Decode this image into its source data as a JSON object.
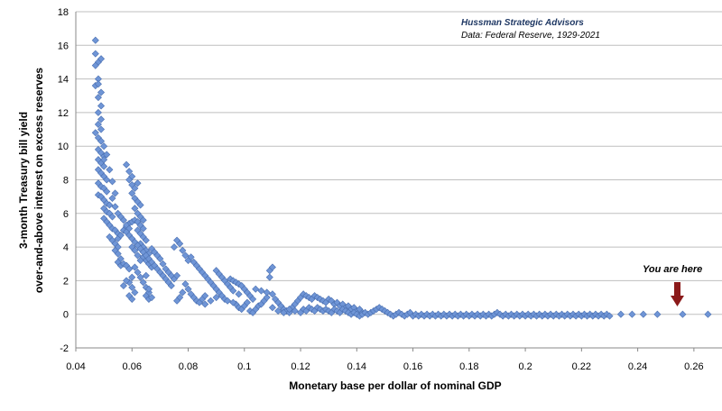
{
  "chart_data": {
    "type": "scatter",
    "source_title": "Hussman Strategic Advisors",
    "source_data": "Data: Federal Reserve, 1929-2021",
    "xlabel": "Monetary base per dollar of nominal GDP",
    "ylabel_line1": "3-month Treasury bill yield",
    "ylabel_line2": "over-and-above  interest on excess reserves",
    "xlim": [
      0.04,
      0.27
    ],
    "ylim": [
      -2,
      18
    ],
    "x_ticks": [
      "0.04",
      "0.06",
      "0.08",
      "0.1",
      "0.12",
      "0.14",
      "0.16",
      "0.18",
      "0.2",
      "0.22",
      "0.24",
      "0.26"
    ],
    "x_tick_values": [
      0.04,
      0.06,
      0.08,
      0.1,
      0.12,
      0.14,
      0.16,
      0.18,
      0.2,
      0.22,
      0.24,
      0.26
    ],
    "y_ticks": [
      "-2",
      "0",
      "2",
      "4",
      "6",
      "8",
      "10",
      "12",
      "14",
      "16",
      "18"
    ],
    "y_tick_values": [
      -2,
      0,
      2,
      4,
      6,
      8,
      10,
      12,
      14,
      16,
      18
    ],
    "grid": "horizontal",
    "marker": "diamond",
    "marker_color": "#6f95d6",
    "marker_edge": "#4a6fb0",
    "annotation": {
      "text": "You are here",
      "x": 0.265,
      "y": 0.0,
      "arrow_color": "#8b1a1a"
    },
    "points": [
      [
        0.047,
        16.3
      ],
      [
        0.047,
        15.5
      ],
      [
        0.048,
        15.0
      ],
      [
        0.047,
        14.8
      ],
      [
        0.049,
        15.2
      ],
      [
        0.048,
        14.0
      ],
      [
        0.047,
        13.6
      ],
      [
        0.048,
        13.7
      ],
      [
        0.049,
        13.2
      ],
      [
        0.048,
        12.9
      ],
      [
        0.049,
        12.4
      ],
      [
        0.048,
        12.0
      ],
      [
        0.049,
        11.6
      ],
      [
        0.048,
        11.3
      ],
      [
        0.049,
        11.0
      ],
      [
        0.047,
        10.8
      ],
      [
        0.048,
        10.5
      ],
      [
        0.049,
        10.3
      ],
      [
        0.05,
        10.0
      ],
      [
        0.048,
        9.8
      ],
      [
        0.049,
        9.6
      ],
      [
        0.05,
        9.4
      ],
      [
        0.048,
        9.2
      ],
      [
        0.049,
        9.0
      ],
      [
        0.05,
        8.8
      ],
      [
        0.048,
        8.6
      ],
      [
        0.049,
        8.4
      ],
      [
        0.05,
        8.2
      ],
      [
        0.051,
        8.0
      ],
      [
        0.048,
        7.8
      ],
      [
        0.049,
        7.6
      ],
      [
        0.05,
        7.5
      ],
      [
        0.051,
        7.3
      ],
      [
        0.048,
        7.1
      ],
      [
        0.049,
        7.0
      ],
      [
        0.05,
        6.8
      ],
      [
        0.051,
        6.6
      ],
      [
        0.052,
        6.5
      ],
      [
        0.05,
        6.3
      ],
      [
        0.051,
        6.1
      ],
      [
        0.052,
        6.0
      ],
      [
        0.053,
        5.8
      ],
      [
        0.05,
        5.7
      ],
      [
        0.051,
        5.5
      ],
      [
        0.052,
        5.3
      ],
      [
        0.053,
        5.1
      ],
      [
        0.054,
        5.0
      ],
      [
        0.055,
        4.8
      ],
      [
        0.052,
        4.6
      ],
      [
        0.053,
        4.4
      ],
      [
        0.054,
        4.2
      ],
      [
        0.055,
        4.0
      ],
      [
        0.054,
        3.8
      ],
      [
        0.055,
        3.6
      ],
      [
        0.056,
        3.3
      ],
      [
        0.055,
        3.1
      ],
      [
        0.056,
        2.9
      ],
      [
        0.057,
        3.0
      ],
      [
        0.058,
        2.9
      ],
      [
        0.055,
        4.5
      ],
      [
        0.056,
        4.7
      ],
      [
        0.057,
        5.0
      ],
      [
        0.058,
        5.2
      ],
      [
        0.059,
        5.4
      ],
      [
        0.06,
        5.5
      ],
      [
        0.061,
        5.6
      ],
      [
        0.062,
        5.5
      ],
      [
        0.063,
        5.3
      ],
      [
        0.064,
        5.1
      ],
      [
        0.058,
        8.9
      ],
      [
        0.059,
        8.5
      ],
      [
        0.06,
        8.2
      ],
      [
        0.059,
        8.0
      ],
      [
        0.06,
        7.7
      ],
      [
        0.061,
        7.5
      ],
      [
        0.062,
        7.8
      ],
      [
        0.06,
        7.2
      ],
      [
        0.061,
        6.9
      ],
      [
        0.062,
        6.7
      ],
      [
        0.063,
        6.5
      ],
      [
        0.061,
        6.3
      ],
      [
        0.062,
        6.0
      ],
      [
        0.063,
        5.8
      ],
      [
        0.064,
        5.6
      ],
      [
        0.062,
        5.0
      ],
      [
        0.063,
        4.8
      ],
      [
        0.064,
        4.6
      ],
      [
        0.065,
        4.4
      ],
      [
        0.063,
        4.2
      ],
      [
        0.064,
        4.0
      ],
      [
        0.065,
        3.8
      ],
      [
        0.066,
        3.6
      ],
      [
        0.064,
        3.4
      ],
      [
        0.065,
        3.2
      ],
      [
        0.066,
        3.0
      ],
      [
        0.067,
        2.8
      ],
      [
        0.06,
        4.0
      ],
      [
        0.061,
        3.8
      ],
      [
        0.062,
        3.5
      ],
      [
        0.063,
        3.2
      ],
      [
        0.061,
        2.8
      ],
      [
        0.062,
        2.5
      ],
      [
        0.063,
        2.2
      ],
      [
        0.064,
        1.9
      ],
      [
        0.065,
        1.6
      ],
      [
        0.066,
        1.3
      ],
      [
        0.065,
        1.1
      ],
      [
        0.066,
        0.9
      ],
      [
        0.067,
        1.0
      ],
      [
        0.066,
        1.5
      ],
      [
        0.065,
        2.3
      ],
      [
        0.06,
        2.2
      ],
      [
        0.059,
        1.9
      ],
      [
        0.06,
        1.6
      ],
      [
        0.061,
        1.3
      ],
      [
        0.059,
        1.1
      ],
      [
        0.06,
        0.9
      ],
      [
        0.058,
        2.0
      ],
      [
        0.057,
        1.7
      ],
      [
        0.059,
        2.7
      ],
      [
        0.067,
        3.9
      ],
      [
        0.068,
        3.7
      ],
      [
        0.069,
        3.5
      ],
      [
        0.07,
        3.3
      ],
      [
        0.071,
        3.0
      ],
      [
        0.072,
        2.7
      ],
      [
        0.073,
        2.5
      ],
      [
        0.074,
        2.3
      ],
      [
        0.075,
        2.1
      ],
      [
        0.076,
        2.3
      ],
      [
        0.077,
        4.2
      ],
      [
        0.076,
        4.4
      ],
      [
        0.075,
        4.0
      ],
      [
        0.078,
        3.8
      ],
      [
        0.079,
        3.5
      ],
      [
        0.08,
        3.2
      ],
      [
        0.081,
        3.4
      ],
      [
        0.082,
        3.1
      ],
      [
        0.083,
        2.9
      ],
      [
        0.084,
        2.7
      ],
      [
        0.085,
        2.5
      ],
      [
        0.086,
        2.3
      ],
      [
        0.087,
        2.1
      ],
      [
        0.088,
        1.9
      ],
      [
        0.089,
        1.7
      ],
      [
        0.09,
        1.5
      ],
      [
        0.091,
        1.3
      ],
      [
        0.092,
        1.1
      ],
      [
        0.093,
        0.9
      ],
      [
        0.079,
        1.8
      ],
      [
        0.08,
        1.5
      ],
      [
        0.081,
        1.2
      ],
      [
        0.082,
        1.0
      ],
      [
        0.083,
        0.8
      ],
      [
        0.084,
        0.7
      ],
      [
        0.085,
        0.9
      ],
      [
        0.086,
        1.1
      ],
      [
        0.078,
        1.3
      ],
      [
        0.077,
        1.0
      ],
      [
        0.076,
        0.8
      ],
      [
        0.09,
        2.6
      ],
      [
        0.091,
        2.4
      ],
      [
        0.092,
        2.2
      ],
      [
        0.093,
        2.0
      ],
      [
        0.094,
        1.8
      ],
      [
        0.095,
        1.6
      ],
      [
        0.096,
        1.4
      ],
      [
        0.095,
        2.1
      ],
      [
        0.096,
        2.0
      ],
      [
        0.097,
        1.9
      ],
      [
        0.098,
        1.8
      ],
      [
        0.099,
        1.7
      ],
      [
        0.1,
        1.5
      ],
      [
        0.101,
        1.3
      ],
      [
        0.102,
        1.1
      ],
      [
        0.103,
        0.9
      ],
      [
        0.097,
        0.6
      ],
      [
        0.098,
        0.4
      ],
      [
        0.099,
        0.3
      ],
      [
        0.1,
        0.5
      ],
      [
        0.101,
        0.7
      ],
      [
        0.102,
        0.2
      ],
      [
        0.103,
        0.1
      ],
      [
        0.104,
        0.3
      ],
      [
        0.105,
        0.5
      ],
      [
        0.106,
        0.6
      ],
      [
        0.107,
        0.8
      ],
      [
        0.108,
        1.0
      ],
      [
        0.109,
        2.6
      ],
      [
        0.11,
        2.8
      ],
      [
        0.109,
        2.2
      ],
      [
        0.11,
        1.2
      ],
      [
        0.111,
        0.9
      ],
      [
        0.112,
        0.7
      ],
      [
        0.113,
        0.5
      ],
      [
        0.114,
        0.3
      ],
      [
        0.115,
        0.2
      ],
      [
        0.116,
        0.1
      ],
      [
        0.117,
        0.4
      ],
      [
        0.118,
        0.6
      ],
      [
        0.119,
        0.8
      ],
      [
        0.12,
        1.0
      ],
      [
        0.121,
        1.2
      ],
      [
        0.122,
        1.1
      ],
      [
        0.123,
        1.0
      ],
      [
        0.124,
        0.9
      ],
      [
        0.125,
        1.1
      ],
      [
        0.126,
        1.0
      ],
      [
        0.127,
        0.9
      ],
      [
        0.128,
        0.8
      ],
      [
        0.129,
        0.7
      ],
      [
        0.13,
        0.9
      ],
      [
        0.131,
        0.8
      ],
      [
        0.132,
        0.6
      ],
      [
        0.133,
        0.7
      ],
      [
        0.134,
        0.5
      ],
      [
        0.135,
        0.6
      ],
      [
        0.136,
        0.4
      ],
      [
        0.137,
        0.5
      ],
      [
        0.138,
        0.3
      ],
      [
        0.139,
        0.4
      ],
      [
        0.14,
        0.2
      ],
      [
        0.141,
        0.3
      ],
      [
        0.142,
        0.1
      ],
      [
        0.121,
        0.3
      ],
      [
        0.122,
        0.2
      ],
      [
        0.123,
        0.4
      ],
      [
        0.124,
        0.3
      ],
      [
        0.125,
        0.2
      ],
      [
        0.126,
        0.4
      ],
      [
        0.127,
        0.3
      ],
      [
        0.128,
        0.2
      ],
      [
        0.129,
        0.3
      ],
      [
        0.13,
        0.2
      ],
      [
        0.131,
        0.1
      ],
      [
        0.132,
        0.3
      ],
      [
        0.133,
        0.2
      ],
      [
        0.134,
        0.1
      ],
      [
        0.135,
        0.3
      ],
      [
        0.136,
        0.2
      ],
      [
        0.137,
        0.1
      ],
      [
        0.138,
        0.0
      ],
      [
        0.139,
        0.1
      ],
      [
        0.14,
        0.0
      ],
      [
        0.141,
        -0.1
      ],
      [
        0.142,
        0.0
      ],
      [
        0.143,
        0.1
      ],
      [
        0.144,
        0.0
      ],
      [
        0.145,
        0.1
      ],
      [
        0.146,
        0.2
      ],
      [
        0.147,
        0.3
      ],
      [
        0.148,
        0.4
      ],
      [
        0.149,
        0.3
      ],
      [
        0.15,
        0.2
      ],
      [
        0.151,
        0.1
      ],
      [
        0.152,
        0.0
      ],
      [
        0.153,
        -0.1
      ],
      [
        0.154,
        0.0
      ],
      [
        0.155,
        0.1
      ],
      [
        0.156,
        0.0
      ],
      [
        0.157,
        -0.1
      ],
      [
        0.158,
        0.0
      ],
      [
        0.159,
        0.1
      ],
      [
        0.16,
        -0.1
      ],
      [
        0.161,
        0.0
      ],
      [
        0.162,
        -0.1
      ],
      [
        0.163,
        0.0
      ],
      [
        0.164,
        -0.1
      ],
      [
        0.165,
        0.0
      ],
      [
        0.166,
        -0.1
      ],
      [
        0.167,
        0.0
      ],
      [
        0.168,
        -0.1
      ],
      [
        0.169,
        0.0
      ],
      [
        0.17,
        -0.1
      ],
      [
        0.171,
        0.0
      ],
      [
        0.172,
        -0.1
      ],
      [
        0.173,
        0.0
      ],
      [
        0.174,
        -0.1
      ],
      [
        0.175,
        0.0
      ],
      [
        0.176,
        -0.1
      ],
      [
        0.177,
        0.0
      ],
      [
        0.178,
        -0.1
      ],
      [
        0.179,
        0.0
      ],
      [
        0.18,
        -0.1
      ],
      [
        0.181,
        0.0
      ],
      [
        0.182,
        -0.1
      ],
      [
        0.183,
        0.0
      ],
      [
        0.184,
        -0.1
      ],
      [
        0.185,
        0.0
      ],
      [
        0.186,
        -0.1
      ],
      [
        0.187,
        0.0
      ],
      [
        0.188,
        -0.1
      ],
      [
        0.189,
        0.0
      ],
      [
        0.19,
        0.1
      ],
      [
        0.191,
        0.0
      ],
      [
        0.192,
        -0.1
      ],
      [
        0.193,
        0.0
      ],
      [
        0.194,
        -0.1
      ],
      [
        0.195,
        0.0
      ],
      [
        0.196,
        -0.1
      ],
      [
        0.197,
        0.0
      ],
      [
        0.198,
        -0.1
      ],
      [
        0.199,
        0.0
      ],
      [
        0.2,
        -0.1
      ],
      [
        0.201,
        0.0
      ],
      [
        0.202,
        -0.1
      ],
      [
        0.203,
        0.0
      ],
      [
        0.204,
        -0.1
      ],
      [
        0.205,
        0.0
      ],
      [
        0.206,
        -0.1
      ],
      [
        0.207,
        0.0
      ],
      [
        0.208,
        -0.1
      ],
      [
        0.209,
        0.0
      ],
      [
        0.21,
        -0.1
      ],
      [
        0.211,
        0.0
      ],
      [
        0.212,
        -0.1
      ],
      [
        0.213,
        0.0
      ],
      [
        0.214,
        -0.1
      ],
      [
        0.215,
        0.0
      ],
      [
        0.216,
        -0.1
      ],
      [
        0.217,
        0.0
      ],
      [
        0.218,
        -0.1
      ],
      [
        0.219,
        0.0
      ],
      [
        0.22,
        -0.1
      ],
      [
        0.221,
        0.0
      ],
      [
        0.222,
        -0.1
      ],
      [
        0.223,
        0.0
      ],
      [
        0.224,
        -0.1
      ],
      [
        0.225,
        0.0
      ],
      [
        0.226,
        -0.1
      ],
      [
        0.227,
        0.0
      ],
      [
        0.228,
        -0.1
      ],
      [
        0.229,
        0.0
      ],
      [
        0.23,
        -0.1
      ],
      [
        0.234,
        0.0
      ],
      [
        0.238,
        0.0
      ],
      [
        0.242,
        0.0
      ],
      [
        0.247,
        0.0
      ],
      [
        0.256,
        0.0
      ],
      [
        0.265,
        0.0
      ],
      [
        0.051,
        9.5
      ],
      [
        0.05,
        9.2
      ],
      [
        0.052,
        8.6
      ],
      [
        0.053,
        7.9
      ],
      [
        0.054,
        7.2
      ],
      [
        0.053,
        6.9
      ],
      [
        0.054,
        6.4
      ],
      [
        0.055,
        6.0
      ],
      [
        0.056,
        5.8
      ],
      [
        0.057,
        5.6
      ],
      [
        0.058,
        5.3
      ],
      [
        0.059,
        5.1
      ],
      [
        0.058,
        4.9
      ],
      [
        0.059,
        4.7
      ],
      [
        0.06,
        4.5
      ],
      [
        0.061,
        4.3
      ],
      [
        0.062,
        4.1
      ],
      [
        0.063,
        3.9
      ],
      [
        0.064,
        3.7
      ],
      [
        0.065,
        3.5
      ],
      [
        0.066,
        3.3
      ],
      [
        0.067,
        3.1
      ],
      [
        0.068,
        2.9
      ],
      [
        0.069,
        2.7
      ],
      [
        0.07,
        2.5
      ],
      [
        0.071,
        2.3
      ],
      [
        0.072,
        2.1
      ],
      [
        0.073,
        1.9
      ],
      [
        0.074,
        1.7
      ],
      [
        0.086,
        0.6
      ],
      [
        0.088,
        0.8
      ],
      [
        0.09,
        1.0
      ],
      [
        0.094,
        0.8
      ],
      [
        0.096,
        0.7
      ],
      [
        0.098,
        1.2
      ],
      [
        0.104,
        1.5
      ],
      [
        0.106,
        1.4
      ],
      [
        0.108,
        1.3
      ],
      [
        0.11,
        0.4
      ],
      [
        0.112,
        0.2
      ],
      [
        0.114,
        0.1
      ],
      [
        0.116,
        0.3
      ],
      [
        0.118,
        0.2
      ],
      [
        0.12,
        0.1
      ]
    ]
  }
}
